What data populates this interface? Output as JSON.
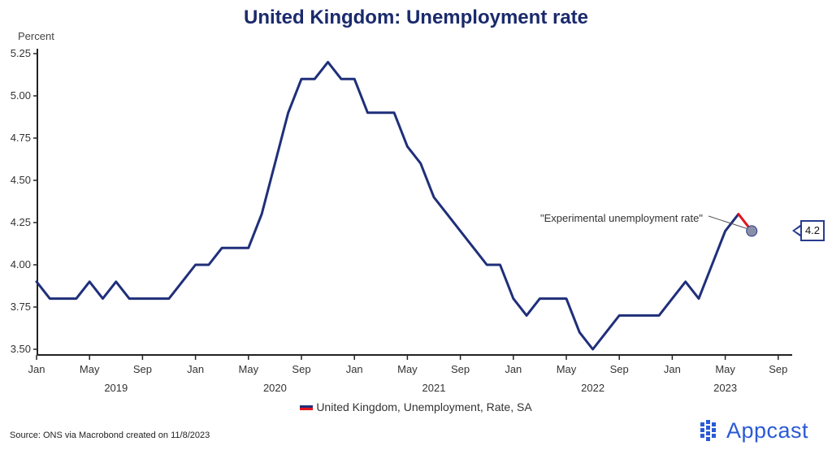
{
  "title": "United Kingdom: Unemployment rate",
  "source": "Source: ONS via Macrobond created on 11/8/2023",
  "brand": {
    "name": "Appcast",
    "color": "#2b5ad6"
  },
  "callout": {
    "value_label": "4.2"
  },
  "annotation": {
    "text": "\"Experimental unemployment rate\""
  },
  "chart_data": {
    "type": "line",
    "title": "United Kingdom: Unemployment rate",
    "ylabel": "Percent",
    "xlabel": "",
    "ylim": [
      3.5,
      5.25
    ],
    "yticks": [
      "3.50",
      "3.75",
      "4.00",
      "4.25",
      "4.50",
      "4.75",
      "5.00",
      "5.25"
    ],
    "grid": false,
    "legend_position": "bottom-center",
    "xtick_labels": [
      "Jan",
      "May",
      "Sep",
      "Jan",
      "May",
      "Sep",
      "Jan",
      "May",
      "Sep",
      "Jan",
      "May",
      "Sep",
      "Jan",
      "May",
      "Sep"
    ],
    "xtick_dates": [
      "2019-01",
      "2019-05",
      "2019-09",
      "2020-01",
      "2020-05",
      "2020-09",
      "2021-01",
      "2021-05",
      "2021-09",
      "2022-01",
      "2022-05",
      "2022-09",
      "2023-01",
      "2023-05",
      "2023-09"
    ],
    "year_labels": [
      "2019",
      "2020",
      "2021",
      "2022",
      "2023"
    ],
    "year_label_dates": [
      "2019-07",
      "2020-07",
      "2021-07",
      "2022-07",
      "2023-05"
    ],
    "series": [
      {
        "name": "United Kingdom, Unemployment, Rate, SA",
        "color": "#1f2f7a",
        "x": [
          "2019-01",
          "2019-02",
          "2019-03",
          "2019-04",
          "2019-05",
          "2019-06",
          "2019-07",
          "2019-08",
          "2019-09",
          "2019-10",
          "2019-11",
          "2019-12",
          "2020-01",
          "2020-02",
          "2020-03",
          "2020-04",
          "2020-05",
          "2020-06",
          "2020-07",
          "2020-08",
          "2020-09",
          "2020-10",
          "2020-11",
          "2020-12",
          "2021-01",
          "2021-02",
          "2021-03",
          "2021-04",
          "2021-05",
          "2021-06",
          "2021-07",
          "2021-08",
          "2021-09",
          "2021-10",
          "2021-11",
          "2021-12",
          "2022-01",
          "2022-02",
          "2022-03",
          "2022-04",
          "2022-05",
          "2022-06",
          "2022-07",
          "2022-08",
          "2022-09",
          "2022-10",
          "2022-11",
          "2022-12",
          "2023-01",
          "2023-02",
          "2023-03",
          "2023-04",
          "2023-05",
          "2023-06"
        ],
        "values": [
          3.9,
          3.8,
          3.8,
          3.8,
          3.9,
          3.8,
          3.9,
          3.8,
          3.8,
          3.8,
          3.8,
          3.9,
          4.0,
          4.0,
          4.1,
          4.1,
          4.1,
          4.3,
          4.6,
          4.9,
          5.1,
          5.1,
          5.2,
          5.1,
          5.1,
          4.9,
          4.9,
          4.9,
          4.7,
          4.6,
          4.4,
          4.3,
          4.2,
          4.1,
          4.0,
          4.0,
          3.8,
          3.7,
          3.8,
          3.8,
          3.8,
          3.6,
          3.5,
          3.6,
          3.7,
          3.7,
          3.7,
          3.7,
          3.8,
          3.9,
          3.8,
          4.0,
          4.2,
          4.3
        ]
      },
      {
        "name": "\"Experimental unemployment rate\"",
        "color": "#e3141b",
        "x": [
          "2023-06",
          "2023-07"
        ],
        "values": [
          4.3,
          4.2
        ]
      }
    ],
    "legend": [
      "United Kingdom, Unemployment, Rate, SA"
    ]
  }
}
